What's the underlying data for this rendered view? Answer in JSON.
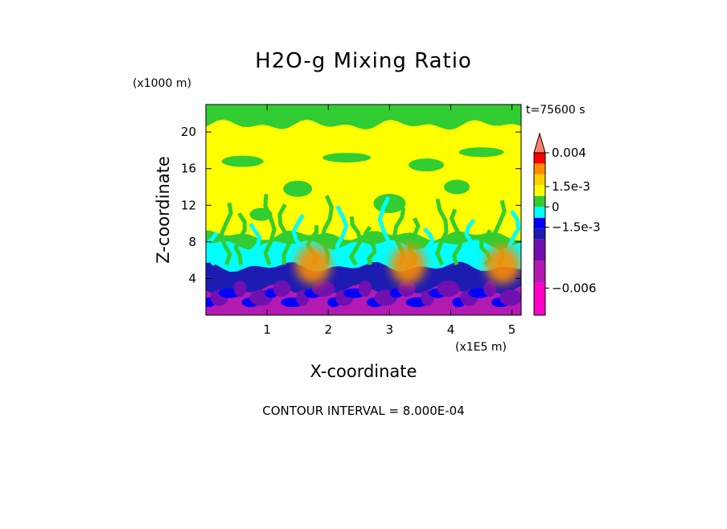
{
  "chart_data": {
    "type": "heatmap",
    "title": "H2O-g Mixing Ratio",
    "time_label": "t=75600 s",
    "xlabel": "X-coordinate",
    "x_unit": "(x1E5 m)",
    "ylabel": "Z-coordinate",
    "y_unit": "(x1000 m)",
    "xlim": [
      0,
      5.15
    ],
    "ylim": [
      0,
      23
    ],
    "x_ticks": [
      1,
      2,
      3,
      4,
      5
    ],
    "y_ticks": [
      4,
      8,
      12,
      16,
      20
    ],
    "footer": "CONTOUR INTERVAL = 8.000E-04",
    "colorbar": {
      "labels": [
        {
          "text": "0.004",
          "value": 0.004
        },
        {
          "text": "1.5e-3",
          "value": 0.0015
        },
        {
          "text": "0",
          "value": 0
        },
        {
          "text": "−1.5e-3",
          "value": -0.0015
        },
        {
          "text": "−0.006",
          "value": -0.006
        }
      ],
      "levels": [
        {
          "min": -0.008,
          "max": -0.0056,
          "color": "#ff00c8"
        },
        {
          "min": -0.0056,
          "max": -0.004,
          "color": "#b21ab2"
        },
        {
          "min": -0.004,
          "max": -0.0024,
          "color": "#7010b0"
        },
        {
          "min": -0.0024,
          "max": -0.0016,
          "color": "#1c1cb2"
        },
        {
          "min": -0.0016,
          "max": -0.0008,
          "color": "#0000ff"
        },
        {
          "min": -0.0008,
          "max": 0.0,
          "color": "#00ffff"
        },
        {
          "min": 0.0,
          "max": 0.0008,
          "color": "#32cd32"
        },
        {
          "min": 0.0008,
          "max": 0.0016,
          "color": "#ffff00"
        },
        {
          "min": 0.0016,
          "max": 0.0024,
          "color": "#ffd200"
        },
        {
          "min": 0.0024,
          "max": 0.0032,
          "color": "#ff8c00"
        },
        {
          "min": 0.0032,
          "max": 0.004,
          "color": "#ff0000"
        },
        {
          "min": 0.004,
          "max": 0.0048,
          "color": "#fa8070"
        }
      ]
    },
    "field_bands": [
      {
        "z": [
          20.5,
          23
        ],
        "value": 0.0004,
        "color": "#32cd32"
      },
      {
        "z": [
          8.5,
          20.5
        ],
        "value": 0.0012,
        "color": "#ffff00"
      },
      {
        "z": [
          7.5,
          8.5
        ],
        "value": 0.0004,
        "color": "#32cd32"
      },
      {
        "z": [
          5,
          7.5
        ],
        "value": -0.0004,
        "color": "#00ffff"
      },
      {
        "z": [
          2.5,
          5
        ],
        "value": -0.002,
        "color": "#1c1cb2"
      },
      {
        "z": [
          0,
          2.5
        ],
        "value": -0.0048,
        "color": "#b21ab2"
      }
    ],
    "moist_plumes": [
      {
        "x": 1.75,
        "z": 5.5,
        "value": 0.0028,
        "color": "#ff8c00"
      },
      {
        "x": 3.3,
        "z": 5.5,
        "value": 0.0028,
        "color": "#ff8c00"
      },
      {
        "x": 4.85,
        "z": 5.5,
        "value": 0.0028,
        "color": "#ff8c00"
      }
    ]
  }
}
